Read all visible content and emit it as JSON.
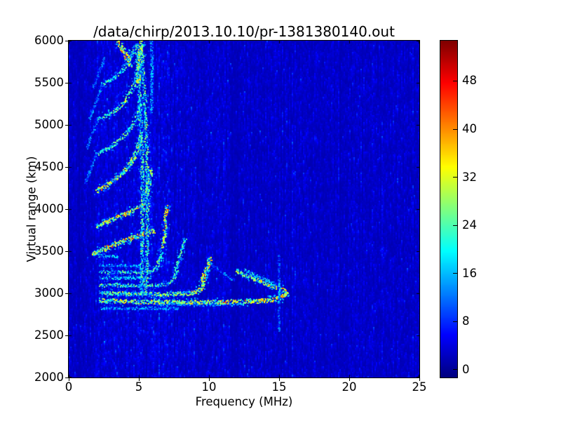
{
  "chart": {
    "title": "/data/chirp/2013.10.10/pr-1381380140.out",
    "xlabel": "Frequency (MHz)",
    "ylabel": "Virtual range (km)"
  },
  "colors": {
    "figure_background": "#ffffff",
    "plot_background_low": "#00008f",
    "spine": "#000000",
    "text": "#000000"
  },
  "chart_data": {
    "type": "heatmap",
    "title": "/data/chirp/2013.10.10/pr-1381380140.out",
    "xlabel": "Frequency (MHz)",
    "ylabel": "Virtual range (km)",
    "xlim": [
      0,
      25
    ],
    "ylim": [
      2000,
      6000
    ],
    "xticks": [
      0,
      5,
      10,
      15,
      20,
      25
    ],
    "yticks": [
      2000,
      2500,
      3000,
      3500,
      4000,
      4500,
      5000,
      5500,
      6000
    ],
    "colorbar": {
      "colormap": "jet",
      "vmin": -1.3,
      "vmax": 54.7,
      "ticks": [
        0,
        8,
        16,
        24,
        32,
        40,
        48
      ]
    },
    "noise": {
      "base": 1.0,
      "scale": 2.0,
      "bands": [
        {
          "f0": 0.0,
          "f1": 1.95,
          "gain": 0.85
        },
        {
          "f0": 1.95,
          "f1": 5.9,
          "gain": 1.3
        },
        {
          "f0": 5.9,
          "f1": 9.0,
          "gain": 1.22
        },
        {
          "f0": 9.0,
          "f1": 11.55,
          "gain": 1.0
        },
        {
          "f0": 11.55,
          "f1": 12.05,
          "gain": 0.45
        },
        {
          "f0": 12.05,
          "f1": 16.2,
          "gain": 0.95
        },
        {
          "f0": 16.2,
          "f1": 25.0,
          "gain": 0.88
        }
      ]
    },
    "traces": [
      {
        "name": "flat-2820",
        "i": 15,
        "w": 1.4,
        "p": [
          [
            2.3,
            2825
          ],
          [
            4.0,
            2820
          ],
          [
            6.0,
            2818
          ],
          [
            7.8,
            2820
          ]
        ]
      },
      {
        "name": "flat-2865",
        "i": 15,
        "w": 1.2,
        "p": [
          [
            6.0,
            2868
          ],
          [
            9.0,
            2865
          ],
          [
            12.4,
            2870
          ]
        ]
      },
      {
        "name": "main-2900",
        "i": 30,
        "w": 2.4,
        "hot": [
          10.5,
          15.6
        ],
        "p": [
          [
            2.2,
            2915
          ],
          [
            3.5,
            2905
          ],
          [
            5.0,
            2900
          ],
          [
            7.0,
            2897
          ],
          [
            9.0,
            2895
          ],
          [
            11.0,
            2897
          ],
          [
            13.0,
            2904
          ],
          [
            14.4,
            2915
          ],
          [
            15.15,
            2945
          ],
          [
            15.55,
            3015
          ]
        ]
      },
      {
        "name": "nose-branch-1",
        "i": 27,
        "w": 2.0,
        "hot": [
          13.0,
          15.6
        ],
        "p": [
          [
            15.5,
            3030
          ],
          [
            14.7,
            3075
          ],
          [
            13.7,
            3140
          ],
          [
            12.7,
            3210
          ],
          [
            11.95,
            3265
          ]
        ]
      },
      {
        "name": "nose-branch-2",
        "i": 19,
        "w": 1.7,
        "p": [
          [
            15.05,
            3085
          ],
          [
            14.1,
            3150
          ],
          [
            13.2,
            3220
          ],
          [
            12.5,
            3275
          ]
        ]
      },
      {
        "name": "flat-3000",
        "i": 27,
        "w": 2.2,
        "hot": [
          8.8,
          10.2
        ],
        "p": [
          [
            2.2,
            3002
          ],
          [
            3.5,
            2996
          ],
          [
            5.0,
            2992
          ],
          [
            6.5,
            2990
          ],
          [
            8.0,
            2993
          ],
          [
            8.8,
            3002
          ],
          [
            9.35,
            3040
          ],
          [
            9.65,
            3105
          ],
          [
            9.55,
            3175
          ],
          [
            9.75,
            3255
          ],
          [
            10.0,
            3345
          ],
          [
            10.1,
            3425
          ]
        ]
      },
      {
        "name": "flat-3090",
        "i": 24,
        "w": 2.0,
        "p": [
          [
            2.2,
            3098
          ],
          [
            3.5,
            3093
          ],
          [
            5.0,
            3090
          ],
          [
            6.2,
            3094
          ],
          [
            7.0,
            3110
          ],
          [
            7.5,
            3168
          ],
          [
            7.72,
            3255
          ],
          [
            7.68,
            3330
          ],
          [
            7.9,
            3420
          ],
          [
            8.15,
            3560
          ],
          [
            8.3,
            3650
          ]
        ]
      },
      {
        "name": "flat-3180",
        "i": 18,
        "w": 1.7,
        "p": [
          [
            2.2,
            3185
          ],
          [
            3.5,
            3180
          ],
          [
            5.0,
            3178
          ],
          [
            5.9,
            3186
          ]
        ]
      },
      {
        "name": "flat-3250",
        "i": 23,
        "w": 1.9,
        "p": [
          [
            2.2,
            3256
          ],
          [
            3.5,
            3250
          ],
          [
            4.8,
            3248
          ],
          [
            5.8,
            3256
          ],
          [
            6.3,
            3300
          ]
        ]
      },
      {
        "name": "cusp-rise-7mhz",
        "i": 26,
        "w": 2.2,
        "hot": [
          6.7,
          7.15
        ],
        "p": [
          [
            6.3,
            3300
          ],
          [
            6.55,
            3420
          ],
          [
            6.75,
            3600
          ],
          [
            6.9,
            3800
          ],
          [
            7.0,
            4040
          ]
        ]
      },
      {
        "name": "flat-3330",
        "i": 16,
        "w": 1.5,
        "p": [
          [
            2.2,
            3332
          ],
          [
            3.5,
            3326
          ],
          [
            5.0,
            3323
          ]
        ]
      },
      {
        "name": "flat-3440",
        "i": 18,
        "w": 1.6,
        "p": [
          [
            1.8,
            3445
          ],
          [
            2.7,
            3440
          ],
          [
            3.5,
            3437
          ]
        ]
      },
      {
        "name": "diag-3500-strong",
        "i": 30,
        "w": 2.5,
        "hot": [
          2.8,
          5.8
        ],
        "p": [
          [
            1.7,
            3470
          ],
          [
            2.6,
            3530
          ],
          [
            3.5,
            3590
          ],
          [
            4.4,
            3650
          ],
          [
            5.3,
            3700
          ],
          [
            6.1,
            3740
          ]
        ]
      },
      {
        "name": "diag-cusp-link",
        "i": 13,
        "w": 1.4,
        "p": [
          [
            10.15,
            3340
          ],
          [
            11.0,
            3240
          ],
          [
            11.8,
            3150
          ]
        ]
      },
      {
        "name": "diag-3900",
        "i": 27,
        "w": 2.3,
        "hot": [
          2.5,
          5.3
        ],
        "p": [
          [
            2.0,
            3790
          ],
          [
            3.2,
            3880
          ],
          [
            4.3,
            3960
          ],
          [
            5.2,
            4030
          ],
          [
            5.55,
            4150
          ],
          [
            5.75,
            4300
          ],
          [
            5.85,
            4480
          ]
        ]
      },
      {
        "name": "arc-4215",
        "i": 27,
        "w": 2.3,
        "hot": [
          2.1,
          3.4
        ],
        "p": [
          [
            2.0,
            4215
          ],
          [
            2.9,
            4300
          ],
          [
            3.8,
            4420
          ],
          [
            4.5,
            4560
          ],
          [
            4.95,
            4720
          ],
          [
            5.2,
            4900
          ]
        ]
      },
      {
        "name": "arc-4650",
        "i": 24,
        "w": 2.2,
        "p": [
          [
            2.0,
            4650
          ],
          [
            3.0,
            4740
          ],
          [
            3.9,
            4860
          ],
          [
            4.6,
            5000
          ],
          [
            5.0,
            5160
          ],
          [
            5.2,
            5340
          ]
        ]
      },
      {
        "name": "arc-5080",
        "i": 24,
        "w": 2.2,
        "hot": [
          2.8,
          4.2
        ],
        "p": [
          [
            2.1,
            5080
          ],
          [
            3.0,
            5130
          ],
          [
            3.8,
            5240
          ],
          [
            4.4,
            5380
          ],
          [
            4.8,
            5530
          ],
          [
            5.05,
            5700
          ]
        ]
      },
      {
        "name": "arc-5480",
        "i": 22,
        "w": 2.0,
        "p": [
          [
            2.4,
            5480
          ],
          [
            3.3,
            5560
          ],
          [
            4.0,
            5680
          ],
          [
            4.5,
            5820
          ],
          [
            4.8,
            5960
          ]
        ]
      },
      {
        "name": "top-bright-blob",
        "i": 29,
        "w": 3.0,
        "hot": [
          3.5,
          4.3
        ],
        "p": [
          [
            3.55,
            5995
          ],
          [
            3.9,
            5885
          ],
          [
            4.2,
            5785
          ],
          [
            4.5,
            5695
          ]
        ]
      },
      {
        "name": "braid-right",
        "i": 25,
        "w": 2.0,
        "p": [
          [
            5.5,
            2980
          ],
          [
            5.6,
            3500
          ],
          [
            5.62,
            4000
          ],
          [
            5.6,
            4500
          ],
          [
            5.5,
            5000
          ],
          [
            5.35,
            5500
          ],
          [
            5.2,
            5950
          ]
        ]
      },
      {
        "name": "braid-left",
        "i": 23,
        "w": 2.0,
        "p": [
          [
            5.15,
            2980
          ],
          [
            5.25,
            3500
          ],
          [
            5.28,
            4000
          ],
          [
            5.25,
            4500
          ],
          [
            5.15,
            5000
          ],
          [
            5.0,
            5500
          ],
          [
            4.85,
            5950
          ]
        ]
      },
      {
        "name": "braid-top-bright",
        "i": 29,
        "w": 2.4,
        "p": [
          [
            4.95,
            5500
          ],
          [
            5.1,
            5800
          ],
          [
            5.2,
            6000
          ]
        ]
      },
      {
        "name": "vert-5p9",
        "i": 15,
        "w": 1.6,
        "p": [
          [
            5.9,
            5150
          ],
          [
            5.95,
            5600
          ],
          [
            5.9,
            6000
          ]
        ]
      },
      {
        "name": "tail-a",
        "i": 13,
        "w": 1.3,
        "p": [
          [
            1.2,
            4310
          ],
          [
            2.0,
            4650
          ]
        ]
      },
      {
        "name": "tail-b",
        "i": 13,
        "w": 1.3,
        "p": [
          [
            1.3,
            4720
          ],
          [
            2.1,
            5080
          ]
        ]
      },
      {
        "name": "tail-c",
        "i": 13,
        "w": 1.3,
        "p": [
          [
            1.5,
            5070
          ],
          [
            2.4,
            5480
          ]
        ]
      },
      {
        "name": "tail-d",
        "i": 12,
        "w": 1.3,
        "p": [
          [
            1.75,
            5440
          ],
          [
            2.6,
            5800
          ]
        ]
      },
      {
        "name": "rfi-line-15mhz",
        "i": 11,
        "w": 1.0,
        "p": [
          [
            15.0,
            2550
          ],
          [
            15.0,
            3450
          ]
        ]
      },
      {
        "name": "rfi-15mhz-bright",
        "i": 18,
        "w": 1.0,
        "p": [
          [
            15.02,
            2870
          ],
          [
            15.02,
            3120
          ]
        ]
      }
    ]
  }
}
